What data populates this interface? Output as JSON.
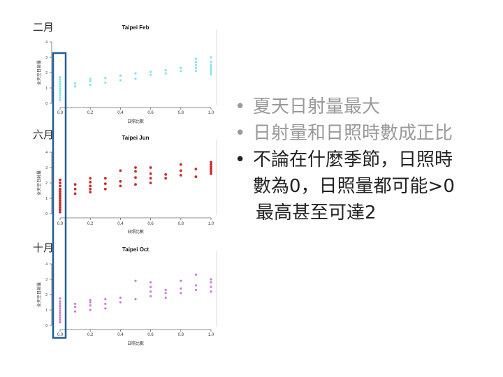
{
  "month_labels": [
    "二月",
    "六月",
    "十月"
  ],
  "bullets": [
    {
      "text": "夏天日射量最大"
    },
    {
      "text": "日射量和日照時數成正比"
    },
    {
      "line1": "不論在什麼季節，日照時",
      "line2": "數為0，日照量都可能>0",
      "line3": "最高甚至可達2"
    }
  ],
  "colors": {
    "feb": "#7fe3ef",
    "jun": "#cc2a2a",
    "oct": "#cc7ad6",
    "highlight": "#1f5f99",
    "faded_text": "#9a9a9a"
  },
  "chart_data": [
    {
      "type": "scatter",
      "title": "Taipei Feb",
      "xlabel": "日照比數",
      "ylabel": "全天空日射量",
      "xlim": [
        0,
        1
      ],
      "ylim": [
        0,
        4
      ],
      "xticks": [
        "0.0",
        "0.2",
        "0.4",
        "0.6",
        "0.8",
        "1.0"
      ],
      "yticks": [
        "0",
        "1",
        "2",
        "3",
        "4"
      ],
      "points": [
        [
          0,
          0.2
        ],
        [
          0,
          0.35
        ],
        [
          0,
          0.5
        ],
        [
          0,
          0.65
        ],
        [
          0,
          0.8
        ],
        [
          0,
          0.95
        ],
        [
          0,
          1.1
        ],
        [
          0,
          1.25
        ],
        [
          0,
          1.4
        ],
        [
          0,
          1.55
        ],
        [
          0,
          1.7
        ],
        [
          0.1,
          1.1
        ],
        [
          0.1,
          1.3
        ],
        [
          0.2,
          1.2
        ],
        [
          0.2,
          1.45
        ],
        [
          0.2,
          1.6
        ],
        [
          0.3,
          1.35
        ],
        [
          0.3,
          1.65
        ],
        [
          0.4,
          1.5
        ],
        [
          0.4,
          1.8
        ],
        [
          0.5,
          1.6
        ],
        [
          0.5,
          1.95
        ],
        [
          0.6,
          1.85
        ],
        [
          0.6,
          2.05
        ],
        [
          0.7,
          1.95
        ],
        [
          0.7,
          2.15
        ],
        [
          0.8,
          2.1
        ],
        [
          0.8,
          2.3
        ],
        [
          0.9,
          2.1
        ],
        [
          0.9,
          2.3
        ],
        [
          0.9,
          2.5
        ],
        [
          0.9,
          2.7
        ],
        [
          0.9,
          2.9
        ],
        [
          1,
          1.9
        ],
        [
          1,
          2.05
        ],
        [
          1,
          2.2
        ],
        [
          1,
          2.35
        ],
        [
          1,
          2.5
        ],
        [
          1,
          2.7
        ],
        [
          1,
          3.0
        ]
      ]
    },
    {
      "type": "scatter",
      "title": "Taipei Jun",
      "xlabel": "日照比數",
      "ylabel": "全天空日射量",
      "xlim": [
        0,
        1
      ],
      "ylim": [
        0,
        4
      ],
      "xticks": [
        "0.0",
        "0.2",
        "0.4",
        "0.6",
        "0.8",
        "1.0"
      ],
      "yticks": [
        "0",
        "1",
        "2",
        "3",
        "4"
      ],
      "points": [
        [
          0,
          0.1
        ],
        [
          0,
          0.25
        ],
        [
          0,
          0.4
        ],
        [
          0,
          0.55
        ],
        [
          0,
          0.7
        ],
        [
          0,
          0.85
        ],
        [
          0,
          1.0
        ],
        [
          0,
          1.15
        ],
        [
          0,
          1.3
        ],
        [
          0,
          1.45
        ],
        [
          0,
          1.6
        ],
        [
          0,
          1.8
        ],
        [
          0,
          2.0
        ],
        [
          0,
          2.2
        ],
        [
          0.1,
          1.3
        ],
        [
          0.1,
          1.6
        ],
        [
          0.1,
          1.9
        ],
        [
          0.2,
          1.4
        ],
        [
          0.2,
          1.6
        ],
        [
          0.2,
          1.8
        ],
        [
          0.2,
          2.05
        ],
        [
          0.2,
          2.3
        ],
        [
          0.3,
          1.6
        ],
        [
          0.3,
          1.95
        ],
        [
          0.3,
          2.3
        ],
        [
          0.4,
          1.8
        ],
        [
          0.4,
          2.1
        ],
        [
          0.4,
          2.8
        ],
        [
          0.5,
          1.9
        ],
        [
          0.5,
          2.35
        ],
        [
          0.5,
          2.75
        ],
        [
          0.5,
          3.0
        ],
        [
          0.6,
          2.0
        ],
        [
          0.6,
          2.3
        ],
        [
          0.6,
          2.6
        ],
        [
          0.6,
          3.0
        ],
        [
          0.7,
          2.3
        ],
        [
          0.7,
          2.55
        ],
        [
          0.8,
          2.5
        ],
        [
          0.8,
          2.8
        ],
        [
          0.8,
          3.2
        ],
        [
          0.9,
          2.4
        ],
        [
          0.9,
          2.9
        ],
        [
          1,
          2.6
        ],
        [
          1,
          2.75
        ],
        [
          1,
          2.9
        ],
        [
          1,
          3.05
        ],
        [
          1,
          3.2
        ],
        [
          1,
          3.35
        ]
      ]
    },
    {
      "type": "scatter",
      "title": "Taipei Oct",
      "xlabel": "日照比數",
      "ylabel": "全天空日射量",
      "xlim": [
        0,
        1
      ],
      "ylim": [
        0,
        4
      ],
      "xticks": [
        "0.0",
        "0.2",
        "0.4",
        "0.6",
        "0.8",
        "1.0"
      ],
      "yticks": [
        "0",
        "1",
        "2",
        "3",
        "4"
      ],
      "points": [
        [
          0,
          0.2
        ],
        [
          0,
          0.35
        ],
        [
          0,
          0.5
        ],
        [
          0,
          0.65
        ],
        [
          0,
          0.8
        ],
        [
          0,
          0.95
        ],
        [
          0,
          1.1
        ],
        [
          0,
          1.25
        ],
        [
          0,
          1.4
        ],
        [
          0,
          1.55
        ],
        [
          0,
          1.75
        ],
        [
          0.1,
          0.9
        ],
        [
          0.1,
          1.2
        ],
        [
          0.1,
          1.4
        ],
        [
          0.2,
          1.0
        ],
        [
          0.2,
          1.3
        ],
        [
          0.2,
          1.5
        ],
        [
          0.2,
          1.65
        ],
        [
          0.3,
          1.1
        ],
        [
          0.3,
          1.4
        ],
        [
          0.3,
          1.7
        ],
        [
          0.4,
          1.5
        ],
        [
          0.4,
          1.8
        ],
        [
          0.5,
          1.7
        ],
        [
          0.5,
          2.9
        ],
        [
          0.6,
          1.9
        ],
        [
          0.6,
          2.2
        ],
        [
          0.6,
          2.5
        ],
        [
          0.6,
          2.8
        ],
        [
          0.7,
          1.8
        ],
        [
          0.7,
          2.1
        ],
        [
          0.7,
          2.3
        ],
        [
          0.8,
          2.1
        ],
        [
          0.8,
          2.4
        ],
        [
          0.8,
          2.9
        ],
        [
          0.9,
          2.3
        ],
        [
          0.9,
          2.6
        ],
        [
          0.9,
          3.3
        ],
        [
          1,
          2.2
        ],
        [
          1,
          2.5
        ],
        [
          1,
          2.8
        ],
        [
          1,
          3.0
        ]
      ]
    }
  ]
}
